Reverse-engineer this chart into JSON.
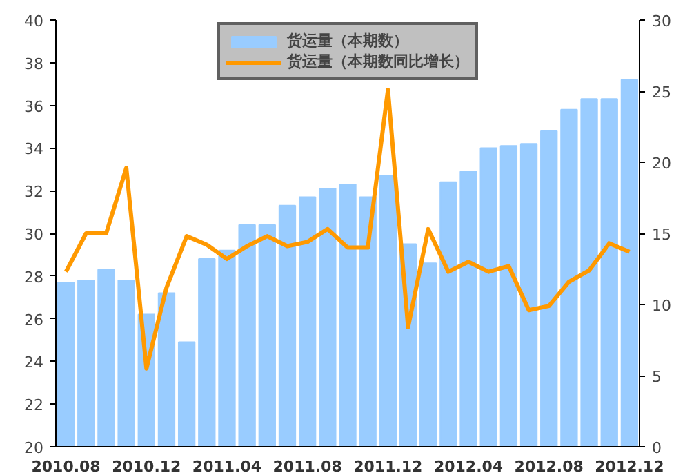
{
  "chart_data": {
    "type": "bar",
    "categories": [
      "2010.08",
      null,
      null,
      null,
      "2010.12",
      null,
      null,
      null,
      "2011.04",
      null,
      null,
      null,
      "2011.08",
      null,
      null,
      null,
      "2011.12",
      null,
      null,
      null,
      "2012.04",
      null,
      null,
      null,
      "2012.08",
      null,
      null,
      null,
      "2012.12"
    ],
    "series": [
      {
        "name": "货运量（本期数）",
        "color": "#99ccff",
        "values": [
          27.7,
          27.8,
          28.3,
          27.8,
          26.2,
          27.2,
          24.9,
          28.8,
          29.2,
          30.4,
          30.4,
          31.3,
          31.7,
          32.1,
          32.3,
          31.7,
          32.7,
          29.5,
          28.6,
          32.4,
          32.9,
          34.0,
          34.1,
          34.2,
          34.8,
          35.8,
          36.3,
          36.3,
          37.2
        ]
      },
      {
        "name": "货运量（本期数同比增长）",
        "color": "#ff9900",
        "type": "line",
        "axis": "y2",
        "values": [
          12.3,
          15.0,
          15.0,
          19.6,
          5.5,
          11.2,
          14.8,
          14.2,
          13.2,
          14.1,
          14.8,
          14.1,
          14.4,
          15.3,
          14.0,
          14.0,
          25.1,
          8.4,
          15.3,
          12.3,
          13.0,
          12.3,
          12.7,
          9.6,
          9.9,
          11.6,
          12.4,
          14.3,
          13.7
        ]
      }
    ],
    "ylim": [
      20,
      40
    ],
    "yticks": [
      20,
      22,
      24,
      26,
      28,
      30,
      32,
      34,
      36,
      38,
      40
    ],
    "y2lim": [
      0,
      30
    ],
    "y2ticks": [
      0,
      5,
      10,
      15,
      20,
      25,
      30
    ],
    "legend": "top",
    "grid": false
  }
}
